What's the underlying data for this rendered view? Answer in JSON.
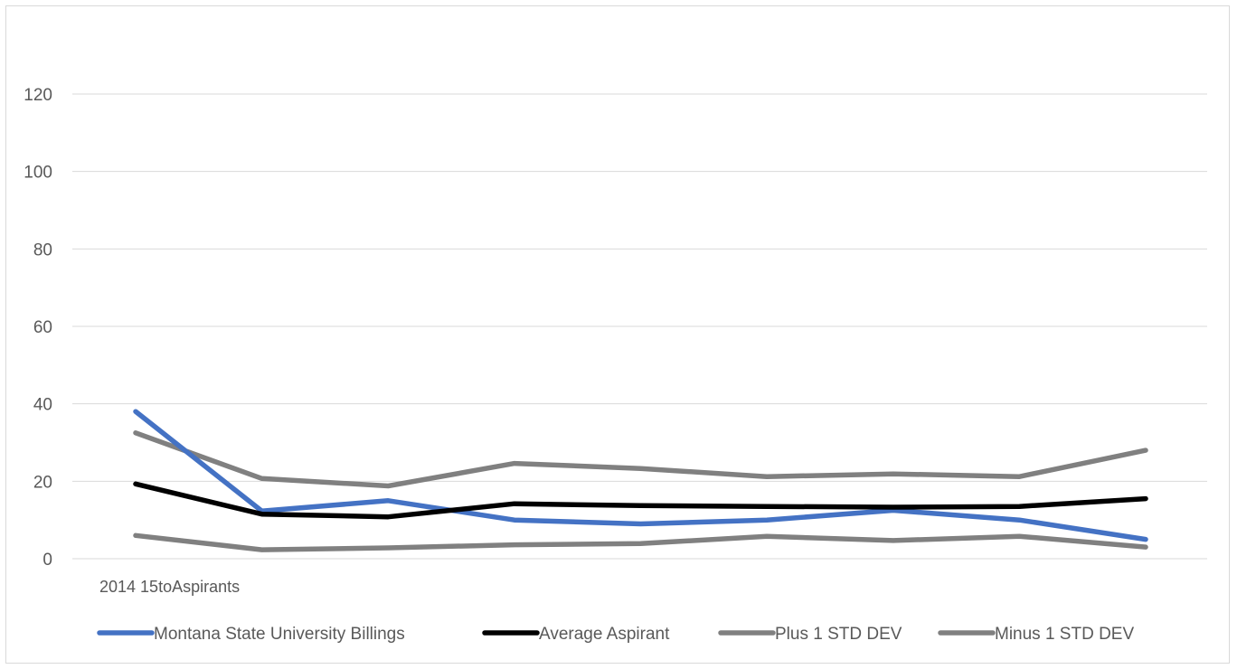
{
  "chart_data": {
    "type": "line",
    "title": "",
    "xlabel": "",
    "ylabel": "",
    "categories": [
      "2014 15toAspirants",
      "",
      "",
      "",
      "",
      "",
      "",
      "",
      ""
    ],
    "ylim": [
      0,
      120
    ],
    "yticks": [
      0,
      20,
      40,
      60,
      80,
      100,
      120
    ],
    "grid": true,
    "legend": "bottom",
    "series": [
      {
        "name": "Montana State University Billings",
        "color": "#4472c4",
        "values": [
          38,
          12.3,
          15,
          10,
          9,
          10,
          12.5,
          10,
          5
        ]
      },
      {
        "name": "Average Aspirant",
        "color": "#000000",
        "values": [
          19.3,
          11.5,
          10.8,
          14.2,
          13.7,
          13.5,
          13.3,
          13.5,
          15.5
        ]
      },
      {
        "name": "Plus 1 STD DEV",
        "color": "#808080",
        "values": [
          32.5,
          20.7,
          18.8,
          24.6,
          23.3,
          21.2,
          21.9,
          21.2,
          28
        ]
      },
      {
        "name": "Minus 1 STD DEV",
        "color": "#808080",
        "values": [
          6,
          2.3,
          2.8,
          3.6,
          3.9,
          5.8,
          4.7,
          5.8,
          3
        ]
      }
    ]
  }
}
